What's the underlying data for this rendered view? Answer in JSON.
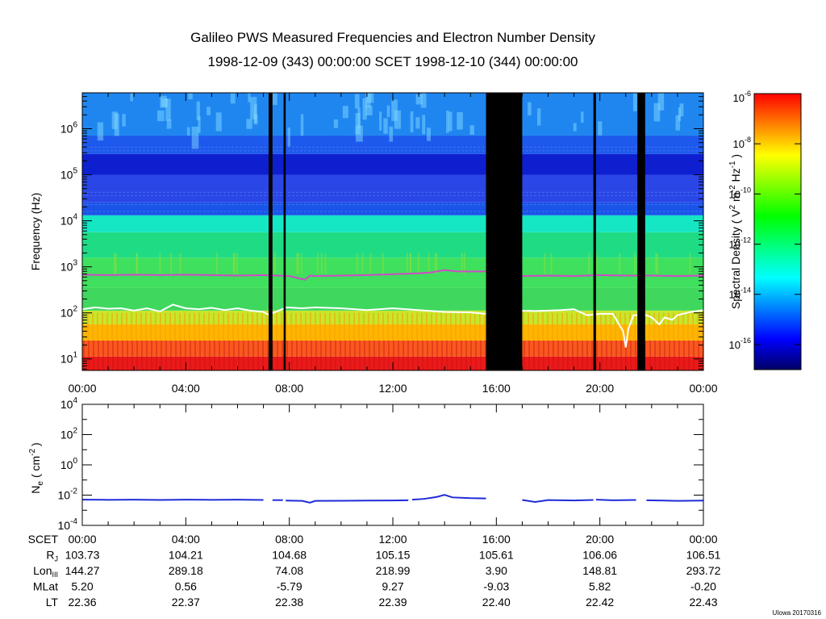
{
  "chart_data": [
    {
      "type": "heatmap",
      "title": "Galileo PWS Measured Frequencies and Electron Number Density",
      "subtitle": "1998-12-09 (343) 00:00:00 SCET 1998-12-10 (344) 00:00:00",
      "ylabel": "Frequency (Hz)",
      "xlim_hours": [
        0,
        24
      ],
      "ylim_log10": [
        0.75,
        6.78
      ],
      "x_ticks": [
        "00:00",
        "04:00",
        "08:00",
        "12:00",
        "16:00",
        "20:00",
        "00:00"
      ],
      "x_tick_hours": [
        0,
        4,
        8,
        12,
        16,
        20,
        24
      ],
      "y_ticks": [
        {
          "base": "10",
          "exp": "1"
        },
        {
          "base": "10",
          "exp": "2"
        },
        {
          "base": "10",
          "exp": "3"
        },
        {
          "base": "10",
          "exp": "4"
        },
        {
          "base": "10",
          "exp": "5"
        },
        {
          "base": "10",
          "exp": "6"
        }
      ],
      "y_tick_log10": [
        1,
        2,
        3,
        4,
        5,
        6
      ],
      "data_gaps_hours": [
        [
          7.2,
          7.35
        ],
        [
          7.78,
          7.86
        ],
        [
          15.6,
          17.0
        ],
        [
          19.75,
          19.85
        ],
        [
          21.45,
          21.75
        ]
      ],
      "bands_log10": [
        {
          "from": 0.75,
          "to": 1.05,
          "color": "#ea1a1a"
        },
        {
          "from": 1.05,
          "to": 1.4,
          "color": "#f8591f"
        },
        {
          "from": 1.4,
          "to": 1.75,
          "color": "#ffb500"
        },
        {
          "from": 1.75,
          "to": 2.05,
          "color": "#c7e62d"
        },
        {
          "from": 2.05,
          "to": 2.55,
          "color": "#3fd75d"
        },
        {
          "from": 2.55,
          "to": 3.2,
          "color": "#3fe05d"
        },
        {
          "from": 3.2,
          "to": 3.75,
          "color": "#1fdc84"
        },
        {
          "from": 3.75,
          "to": 4.12,
          "color": "#15e6c4"
        },
        {
          "from": 4.12,
          "to": 4.4,
          "color": "#1a54e9"
        },
        {
          "from": 4.4,
          "to": 5.0,
          "color": "#2a46e6"
        },
        {
          "from": 5.0,
          "to": 5.45,
          "color": "#0e1fd0"
        },
        {
          "from": 5.45,
          "to": 5.85,
          "color": "#1d59ec"
        },
        {
          "from": 5.85,
          "to": 6.78,
          "color": "#1f86f0"
        }
      ],
      "series": [
        {
          "name": "upper cutoff (magenta)",
          "color": "#d04ac8",
          "x_hours": [
            0,
            1,
            2,
            3,
            4,
            5,
            6,
            7,
            8,
            8.6,
            8.8,
            9,
            10,
            11,
            12,
            13,
            13.5,
            14,
            14.5,
            15,
            15.6,
            17,
            18,
            19,
            20,
            21,
            22,
            23,
            24
          ],
          "y_log10": [
            2.83,
            2.82,
            2.83,
            2.82,
            2.83,
            2.82,
            2.81,
            2.82,
            2.8,
            2.72,
            2.81,
            2.8,
            2.81,
            2.82,
            2.84,
            2.86,
            2.88,
            2.93,
            2.9,
            2.9,
            2.9,
            2.8,
            2.81,
            2.8,
            2.82,
            2.81,
            2.81,
            2.8,
            2.81
          ]
        },
        {
          "name": "lower cutoff (white)",
          "color": "#ffffff",
          "x_hours": [
            0,
            0.5,
            1,
            1.5,
            2,
            2.5,
            3,
            3.5,
            4,
            4.5,
            5,
            5.5,
            6,
            6.5,
            7,
            7.2,
            7.9,
            8.5,
            9,
            10,
            11,
            12,
            13,
            14,
            15,
            15.6,
            17,
            17.5,
            18,
            18.5,
            19,
            19.5,
            20,
            20.5,
            20.9,
            21.0,
            21.1,
            21.3,
            21.8,
            22,
            22.3,
            22.5,
            22.8,
            23,
            23.5,
            24
          ],
          "y_log10": [
            2.08,
            2.12,
            2.09,
            2.1,
            2.05,
            2.1,
            2.03,
            2.18,
            2.1,
            2.08,
            2.11,
            2.06,
            2.1,
            2.05,
            2.02,
            1.96,
            2.12,
            2.1,
            2.12,
            2.1,
            2.06,
            2.1,
            2.06,
            2.02,
            2.01,
            1.98,
            2.05,
            2.04,
            2.05,
            2.06,
            2.08,
            1.95,
            1.98,
            1.98,
            1.6,
            1.25,
            1.65,
            1.95,
            1.95,
            1.9,
            1.75,
            1.9,
            1.85,
            1.95,
            2.02,
            2.06
          ]
        }
      ]
    },
    {
      "type": "line",
      "ylabel_base": "N",
      "ylabel_sub": "e",
      "ylabel_unit_open": "( cm",
      "ylabel_unit_exp": "-2",
      "ylabel_unit_close": ")",
      "xlim_hours": [
        0,
        24
      ],
      "ylim_log10": [
        -4,
        4
      ],
      "y_ticks": [
        {
          "base": "10",
          "exp": "-4"
        },
        {
          "base": "10",
          "exp": "-2"
        },
        {
          "base": "10",
          "exp": "0"
        },
        {
          "base": "10",
          "exp": "2"
        },
        {
          "base": "10",
          "exp": "4"
        }
      ],
      "y_tick_log10": [
        -4,
        -2,
        0,
        2,
        4
      ],
      "series": [
        {
          "name": "Ne",
          "color": "#1f2bd8",
          "segments": [
            {
              "x_hours": [
                0,
                1,
                2,
                3,
                4,
                5,
                6,
                7
              ],
              "y_log10": [
                -2.3,
                -2.31,
                -2.3,
                -2.32,
                -2.3,
                -2.31,
                -2.3,
                -2.32
              ]
            },
            {
              "x_hours": [
                7.35,
                7.75
              ],
              "y_log10": [
                -2.33,
                -2.33
              ]
            },
            {
              "x_hours": [
                7.86,
                8.5,
                8.8,
                9,
                10,
                11,
                12,
                12.6
              ],
              "y_log10": [
                -2.36,
                -2.38,
                -2.5,
                -2.38,
                -2.37,
                -2.36,
                -2.35,
                -2.34
              ]
            },
            {
              "x_hours": [
                12.75,
                13.2,
                13.7,
                14,
                14.3,
                15,
                15.6
              ],
              "y_log10": [
                -2.3,
                -2.25,
                -2.12,
                -1.98,
                -2.15,
                -2.2,
                -2.22
              ]
            },
            {
              "x_hours": [
                17,
                17.5,
                18,
                19,
                19.75
              ],
              "y_log10": [
                -2.32,
                -2.45,
                -2.33,
                -2.35,
                -2.32
              ]
            },
            {
              "x_hours": [
                19.85,
                20.5,
                21.4
              ],
              "y_log10": [
                -2.3,
                -2.34,
                -2.32
              ]
            },
            {
              "x_hours": [
                21.8,
                22.5,
                23,
                24
              ],
              "y_log10": [
                -2.34,
                -2.36,
                -2.38,
                -2.36
              ]
            }
          ]
        }
      ]
    }
  ],
  "colorbar": {
    "label_open": "Spectral Density ( V",
    "label_exp1": "2",
    "label_mid1": " m",
    "label_exp2": "-2",
    "label_mid2": " Hz",
    "label_exp3": "-1",
    "label_close": " )",
    "ticks": [
      {
        "base": "10",
        "exp": "-6"
      },
      {
        "base": "10",
        "exp": "-8"
      },
      {
        "base": "10",
        "exp": "-10"
      },
      {
        "base": "10",
        "exp": "-12"
      },
      {
        "base": "10",
        "exp": "-14"
      },
      {
        "base": "10",
        "exp": "-16"
      }
    ],
    "tick_log10": [
      -6,
      -8,
      -10,
      -12,
      -14,
      -16
    ],
    "range_log10": [
      -17.0,
      -6.0
    ],
    "colors": [
      "#000066",
      "#0000ff",
      "#0080ff",
      "#00ffff",
      "#00ff80",
      "#00ff00",
      "#80ff00",
      "#ffff00",
      "#ff8000",
      "#ff0000"
    ]
  },
  "ephemeris": {
    "rows": [
      {
        "label": "SCET",
        "label_sub": "",
        "values": [
          "00:00",
          "04:00",
          "08:00",
          "12:00",
          "16:00",
          "20:00",
          "00:00"
        ]
      },
      {
        "label": "R",
        "label_sub": "J",
        "values": [
          "103.73",
          "104.21",
          "104.68",
          "105.15",
          "105.61",
          "106.06",
          "106.51"
        ]
      },
      {
        "label": "Lon",
        "label_sub": "III",
        "values": [
          "144.27",
          "289.18",
          "74.08",
          "218.99",
          "3.90",
          "148.81",
          "293.72"
        ]
      },
      {
        "label": "MLat",
        "label_sub": "",
        "values": [
          "5.20",
          "0.56",
          "-5.79",
          "9.27",
          "-9.03",
          "5.82",
          "-0.20"
        ]
      },
      {
        "label": "LT",
        "label_sub": "",
        "values": [
          "22.36",
          "22.37",
          "22.38",
          "22.39",
          "22.40",
          "22.42",
          "22.43"
        ]
      }
    ]
  },
  "credit": "UIowa 20170316"
}
